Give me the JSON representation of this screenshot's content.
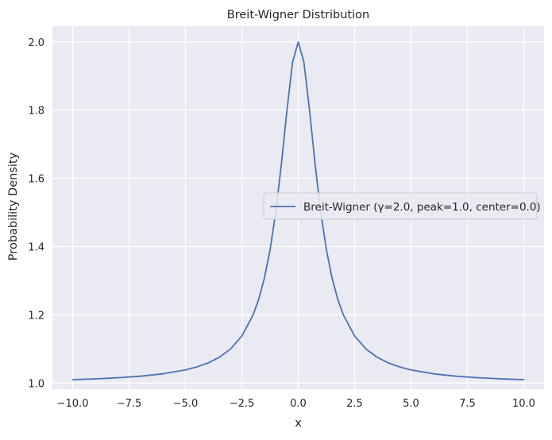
{
  "chart_data": {
    "type": "line",
    "title": "Breit-Wigner Distribution",
    "xlabel": "x",
    "ylabel": "Probability Density",
    "xlim": [
      -10.9,
      10.9
    ],
    "ylim": [
      0.982,
      2.046
    ],
    "x_ticks": [
      -10.0,
      -7.5,
      -5.0,
      -2.5,
      0.0,
      2.5,
      5.0,
      7.5,
      10.0
    ],
    "x_tick_labels": [
      "−10.0",
      "−7.5",
      "−5.0",
      "−2.5",
      "0.0",
      "2.5",
      "5.0",
      "7.5",
      "10.0"
    ],
    "y_ticks": [
      1.0,
      1.2,
      1.4,
      1.6,
      1.8,
      2.0
    ],
    "y_tick_labels": [
      "1.0",
      "1.2",
      "1.4",
      "1.6",
      "1.8",
      "2.0"
    ],
    "grid": true,
    "legend_position": "center-right",
    "background": "#eaeaf2",
    "grid_color": "#ffffff",
    "series": [
      {
        "name": "Breit-Wigner (γ=2.0, peak=1.0, center=0.0)",
        "color": "#4c72b0",
        "x": [
          -10,
          -9,
          -8,
          -7,
          -6,
          -5,
          -4.5,
          -4,
          -3.5,
          -3,
          -2.5,
          -2,
          -1.75,
          -1.5,
          -1.25,
          -1,
          -0.75,
          -0.5,
          -0.25,
          0,
          0.25,
          0.5,
          0.75,
          1,
          1.25,
          1.5,
          1.75,
          2,
          2.5,
          3,
          3.5,
          4,
          4.5,
          5,
          6,
          7,
          8,
          9,
          10
        ],
        "y": [
          1.0099,
          1.0122,
          1.0154,
          1.02,
          1.027,
          1.0385,
          1.0471,
          1.0588,
          1.0755,
          1.1,
          1.1379,
          1.2,
          1.2462,
          1.3077,
          1.3902,
          1.5,
          1.64,
          1.8,
          1.9412,
          2.0,
          1.9412,
          1.8,
          1.64,
          1.5,
          1.3902,
          1.3077,
          1.2462,
          1.2,
          1.1379,
          1.1,
          1.0755,
          1.0588,
          1.0471,
          1.0385,
          1.027,
          1.02,
          1.0154,
          1.0122,
          1.0099
        ]
      }
    ]
  }
}
